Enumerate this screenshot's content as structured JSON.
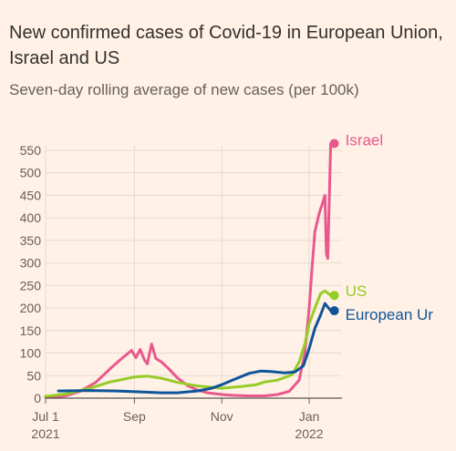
{
  "header": {
    "title": "New confirmed cases of Covid-19 in European Union, Israel and US",
    "subtitle": "Seven-day rolling average of new cases (per 100k)"
  },
  "chart_data": {
    "type": "line",
    "title": "New confirmed cases of Covid-19 in European Union, Israel and US",
    "subtitle": "Seven-day rolling average of new cases (per 100k)",
    "ylim": [
      0,
      560
    ],
    "y_ticks": [
      0,
      50,
      100,
      150,
      200,
      250,
      300,
      350,
      400,
      450,
      500,
      550
    ],
    "x_range": [
      "2021-07-01",
      "2022-01-22"
    ],
    "x_ticks": [
      {
        "date": "2021-07-01",
        "label": "Jul 1",
        "sublabel": "2021"
      },
      {
        "date": "2021-09-01",
        "label": "Sep",
        "sublabel": ""
      },
      {
        "date": "2021-11-01",
        "label": "Nov",
        "sublabel": ""
      },
      {
        "date": "2022-01-01",
        "label": "Jan",
        "sublabel": "2022"
      }
    ],
    "grid": true,
    "series": [
      {
        "name": "Israel",
        "color": "#e8588f",
        "end_value": 565,
        "points": [
          [
            "2021-07-01",
            2
          ],
          [
            "2021-07-15",
            5
          ],
          [
            "2021-07-25",
            15
          ],
          [
            "2021-08-05",
            35
          ],
          [
            "2021-08-15",
            65
          ],
          [
            "2021-08-22",
            85
          ],
          [
            "2021-08-27",
            98
          ],
          [
            "2021-08-30",
            106
          ],
          [
            "2021-09-02",
            90
          ],
          [
            "2021-09-05",
            108
          ],
          [
            "2021-09-08",
            85
          ],
          [
            "2021-09-10",
            76
          ],
          [
            "2021-09-13",
            120
          ],
          [
            "2021-09-16",
            88
          ],
          [
            "2021-09-20",
            80
          ],
          [
            "2021-09-25",
            65
          ],
          [
            "2021-10-01",
            45
          ],
          [
            "2021-10-08",
            28
          ],
          [
            "2021-10-15",
            18
          ],
          [
            "2021-10-22",
            12
          ],
          [
            "2021-11-01",
            8
          ],
          [
            "2021-11-10",
            6
          ],
          [
            "2021-11-20",
            5
          ],
          [
            "2021-12-01",
            5
          ],
          [
            "2021-12-10",
            8
          ],
          [
            "2021-12-18",
            15
          ],
          [
            "2021-12-25",
            40
          ],
          [
            "2021-12-29",
            100
          ],
          [
            "2022-01-01",
            200
          ],
          [
            "2022-01-03",
            290
          ],
          [
            "2022-01-05",
            370
          ],
          [
            "2022-01-08",
            410
          ],
          [
            "2022-01-10",
            430
          ],
          [
            "2022-01-12",
            450
          ],
          [
            "2022-01-13",
            320
          ],
          [
            "2022-01-14",
            310
          ],
          [
            "2022-01-16",
            565
          ]
        ]
      },
      {
        "name": "US",
        "color": "#96cc28",
        "end_value": 228,
        "points": [
          [
            "2021-07-01",
            4
          ],
          [
            "2021-07-15",
            9
          ],
          [
            "2021-08-01",
            22
          ],
          [
            "2021-08-15",
            36
          ],
          [
            "2021-09-01",
            47
          ],
          [
            "2021-09-10",
            49
          ],
          [
            "2021-09-20",
            44
          ],
          [
            "2021-10-01",
            35
          ],
          [
            "2021-10-15",
            27
          ],
          [
            "2021-11-01",
            22
          ],
          [
            "2021-11-15",
            26
          ],
          [
            "2021-11-25",
            30
          ],
          [
            "2021-12-01",
            36
          ],
          [
            "2021-12-10",
            40
          ],
          [
            "2021-12-20",
            52
          ],
          [
            "2021-12-25",
            80
          ],
          [
            "2021-12-29",
            120
          ],
          [
            "2022-01-01",
            165
          ],
          [
            "2022-01-05",
            200
          ],
          [
            "2022-01-09",
            232
          ],
          [
            "2022-01-12",
            238
          ],
          [
            "2022-01-16",
            228
          ]
        ]
      },
      {
        "name": "European Union",
        "color": "#0f5499",
        "end_value": 194,
        "points": [
          [
            "2021-07-10",
            16
          ],
          [
            "2021-08-01",
            17
          ],
          [
            "2021-08-20",
            16
          ],
          [
            "2021-09-05",
            14
          ],
          [
            "2021-09-20",
            12
          ],
          [
            "2021-10-01",
            12
          ],
          [
            "2021-10-15",
            16
          ],
          [
            "2021-10-25",
            22
          ],
          [
            "2021-11-01",
            30
          ],
          [
            "2021-11-10",
            42
          ],
          [
            "2021-11-20",
            55
          ],
          [
            "2021-11-28",
            60
          ],
          [
            "2021-12-05",
            59
          ],
          [
            "2021-12-15",
            56
          ],
          [
            "2021-12-22",
            58
          ],
          [
            "2021-12-28",
            72
          ],
          [
            "2022-01-01",
            110
          ],
          [
            "2022-01-05",
            155
          ],
          [
            "2022-01-09",
            185
          ],
          [
            "2022-01-12",
            210
          ],
          [
            "2022-01-16",
            194
          ]
        ]
      }
    ],
    "labels": [
      {
        "series": "Israel",
        "text": "Israel"
      },
      {
        "series": "US",
        "text": "US"
      },
      {
        "series": "European Union",
        "text": "European Ur"
      }
    ]
  }
}
